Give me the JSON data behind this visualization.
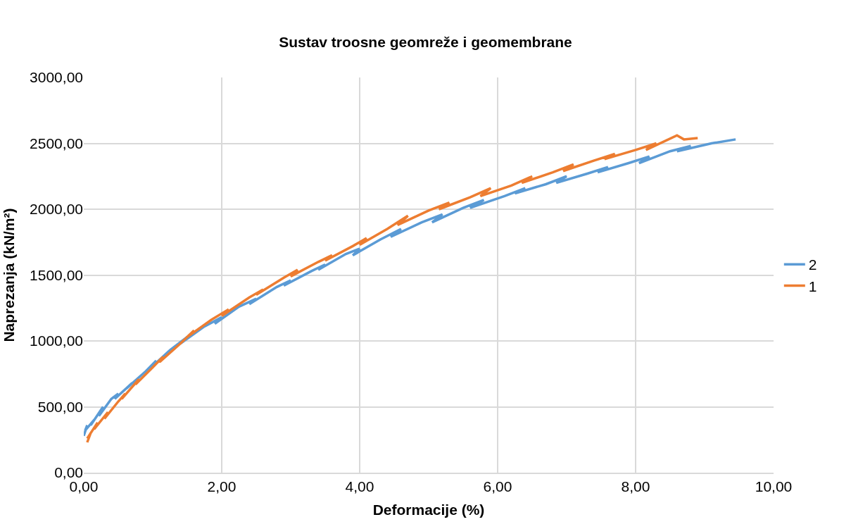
{
  "chart_data": {
    "type": "line",
    "title": "Sustav troosne geomreže i geomembrane",
    "xlabel": "Deformacije (%)",
    "ylabel": "Naprezanja (kN/m²)",
    "series": [
      {
        "name": "2",
        "color": "#5b9bd5",
        "x": [
          0.0,
          0.05,
          0.02,
          0.15,
          0.1,
          0.28,
          0.22,
          0.4,
          0.5,
          0.45,
          0.7,
          0.62,
          0.9,
          1.05,
          0.98,
          1.25,
          1.5,
          1.4,
          1.75,
          2.0,
          1.9,
          2.25,
          2.5,
          2.4,
          2.8,
          3.0,
          2.9,
          3.3,
          3.5,
          3.4,
          3.8,
          4.0,
          3.9,
          4.3,
          4.6,
          4.45,
          4.9,
          5.2,
          5.05,
          5.5,
          5.8,
          5.6,
          6.1,
          6.4,
          6.25,
          6.7,
          7.0,
          6.85,
          7.3,
          7.6,
          7.45,
          7.9,
          8.2,
          8.05,
          8.5,
          8.8,
          8.6,
          9.1,
          9.45
        ],
        "values": [
          280,
          360,
          320,
          400,
          360,
          500,
          430,
          560,
          600,
          560,
          680,
          640,
          770,
          850,
          800,
          930,
          1030,
          980,
          1110,
          1180,
          1130,
          1260,
          1320,
          1280,
          1410,
          1460,
          1420,
          1530,
          1580,
          1540,
          1660,
          1700,
          1650,
          1770,
          1850,
          1790,
          1900,
          1960,
          1900,
          2010,
          2070,
          2010,
          2100,
          2160,
          2120,
          2190,
          2250,
          2200,
          2270,
          2320,
          2280,
          2350,
          2400,
          2350,
          2440,
          2480,
          2440,
          2500,
          2530
        ]
      },
      {
        "name": "1",
        "color": "#ed7d31",
        "x": [
          0.05,
          0.1,
          0.05,
          0.2,
          0.15,
          0.35,
          0.3,
          0.5,
          0.6,
          0.55,
          0.8,
          0.75,
          1.0,
          1.15,
          1.1,
          1.4,
          1.6,
          1.5,
          1.85,
          2.1,
          2.0,
          2.4,
          2.6,
          2.5,
          2.9,
          3.1,
          3.0,
          3.4,
          3.6,
          3.5,
          3.9,
          4.1,
          4.0,
          4.4,
          4.7,
          4.55,
          5.0,
          5.3,
          5.15,
          5.6,
          5.9,
          5.75,
          6.2,
          6.5,
          6.35,
          6.8,
          7.1,
          6.95,
          7.4,
          7.7,
          7.55,
          8.0,
          8.3,
          8.15,
          8.6,
          8.7,
          8.9
        ],
        "values": [
          230,
          300,
          260,
          380,
          330,
          460,
          410,
          540,
          600,
          560,
          710,
          670,
          800,
          880,
          840,
          980,
          1080,
          1030,
          1160,
          1240,
          1190,
          1330,
          1390,
          1350,
          1480,
          1540,
          1490,
          1600,
          1650,
          1610,
          1720,
          1780,
          1730,
          1850,
          1950,
          1880,
          1990,
          2050,
          2000,
          2090,
          2160,
          2100,
          2180,
          2250,
          2200,
          2280,
          2340,
          2290,
          2370,
          2420,
          2380,
          2450,
          2500,
          2450,
          2560,
          2530,
          2540
        ]
      }
    ],
    "xlim": [
      0,
      10
    ],
    "xticks": [
      {
        "value": 0,
        "label": "0,00"
      },
      {
        "value": 2,
        "label": "2,00"
      },
      {
        "value": 4,
        "label": "4,00"
      },
      {
        "value": 6,
        "label": "6,00"
      },
      {
        "value": 8,
        "label": "8,00"
      },
      {
        "value": 10,
        "label": "10,00"
      }
    ],
    "ylim": [
      0,
      3000
    ],
    "yticks": [
      {
        "value": 0,
        "label": "0,00"
      },
      {
        "value": 500,
        "label": "500,00"
      },
      {
        "value": 1000,
        "label": "1000,00"
      },
      {
        "value": 1500,
        "label": "1500,00"
      },
      {
        "value": 2000,
        "label": "2000,00"
      },
      {
        "value": 2500,
        "label": "2500,00"
      },
      {
        "value": 3000,
        "label": "3000,00"
      }
    ],
    "grid": true,
    "legend": "right",
    "marker": "none",
    "line_style": "solid"
  }
}
